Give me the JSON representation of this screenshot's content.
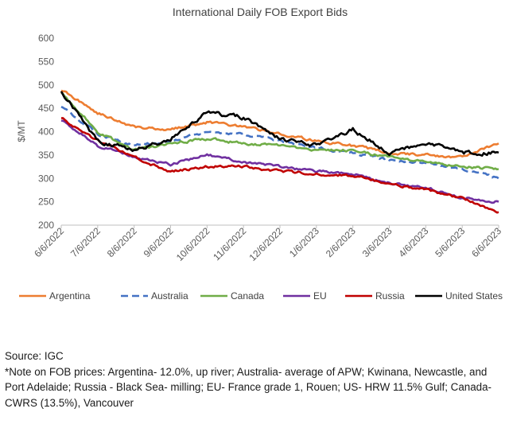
{
  "chart_data": {
    "type": "line",
    "title": "International Daily FOB Export Bids",
    "ylabel": "$/MT",
    "xlabel": "",
    "ylim": [
      200,
      600
    ],
    "yticks": [
      200,
      250,
      300,
      350,
      400,
      450,
      500,
      550,
      600
    ],
    "xticks": [
      "6/6/2022",
      "7/6/2022",
      "8/6/2022",
      "9/6/2022",
      "10/6/2022",
      "11/6/2022",
      "12/6/2022",
      "1/6/2023",
      "2/6/2023",
      "3/6/2023",
      "4/6/2023",
      "5/6/2023",
      "6/6/2023"
    ],
    "legend_position": "bottom",
    "grid": false,
    "series": [
      {
        "name": "Argentina",
        "color": "#ED7D31",
        "dash": "solid",
        "values": [
          490,
          440,
          410,
          405,
          420,
          410,
          395,
          380,
          370,
          355,
          350,
          345,
          375
        ]
      },
      {
        "name": "Australia",
        "color": "#4472C4",
        "dash": "dashed",
        "values": [
          455,
          395,
          370,
          380,
          400,
          395,
          380,
          365,
          355,
          340,
          335,
          320,
          300
        ]
      },
      {
        "name": "Canada",
        "color": "#70AD47",
        "dash": "solid",
        "values": [
          485,
          400,
          360,
          375,
          385,
          375,
          370,
          360,
          360,
          345,
          335,
          325,
          320
        ]
      },
      {
        "name": "EU",
        "color": "#7030A0",
        "dash": "solid",
        "values": [
          425,
          370,
          345,
          330,
          350,
          335,
          325,
          315,
          310,
          290,
          280,
          260,
          250
        ]
      },
      {
        "name": "Russia",
        "color": "#C00000",
        "dash": "solid",
        "values": [
          430,
          380,
          345,
          315,
          325,
          325,
          315,
          310,
          305,
          290,
          275,
          258,
          228
        ]
      },
      {
        "name": "United States",
        "color": "#000000",
        "dash": "solid",
        "values": [
          488,
          380,
          360,
          385,
          440,
          430,
          385,
          370,
          405,
          355,
          375,
          355,
          355
        ]
      }
    ]
  },
  "notes": {
    "source": "Source: IGC",
    "footnote": "*Note on FOB prices: Argentina- 12.0%, up river; Australia- average of APW; Kwinana, Newcastle, and Port Adelaide; Russia - Black Sea- milling; EU- France grade 1, Rouen; US- HRW 11.5% Gulf; Canada- CWRS (13.5%), Vancouver"
  }
}
